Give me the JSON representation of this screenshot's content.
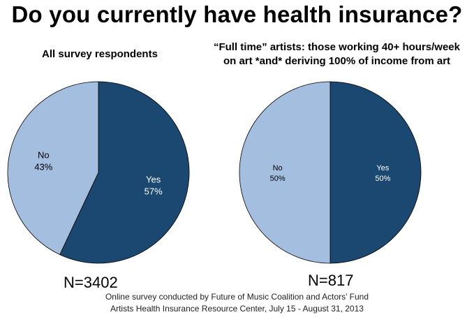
{
  "title": "Do you currently have health insurance?",
  "chart_data": [
    {
      "type": "pie",
      "title": "All survey respondents",
      "categories": [
        "Yes",
        "No"
      ],
      "values": [
        57,
        43
      ],
      "value_labels": [
        "57%",
        "43%"
      ],
      "colors": [
        "#1b4870",
        "#a3bedf"
      ],
      "n_label": "N=3402"
    },
    {
      "type": "pie",
      "title_lines": [
        "“Full time” artists: those working 40+ hours/week",
        "on art *and* deriving 100% of income from art"
      ],
      "categories": [
        "Yes",
        "No"
      ],
      "values": [
        50,
        50
      ],
      "value_labels": [
        "50%",
        "50%"
      ],
      "colors": [
        "#1b4870",
        "#a3bedf"
      ],
      "n_label": "N=817"
    }
  ],
  "footnote": {
    "line1": "Online survey conducted by Future of Music Coalition and Actors’ Fund",
    "line2": "Artists Health Insurance Resource Center, July 15 - August 31, 2013"
  }
}
